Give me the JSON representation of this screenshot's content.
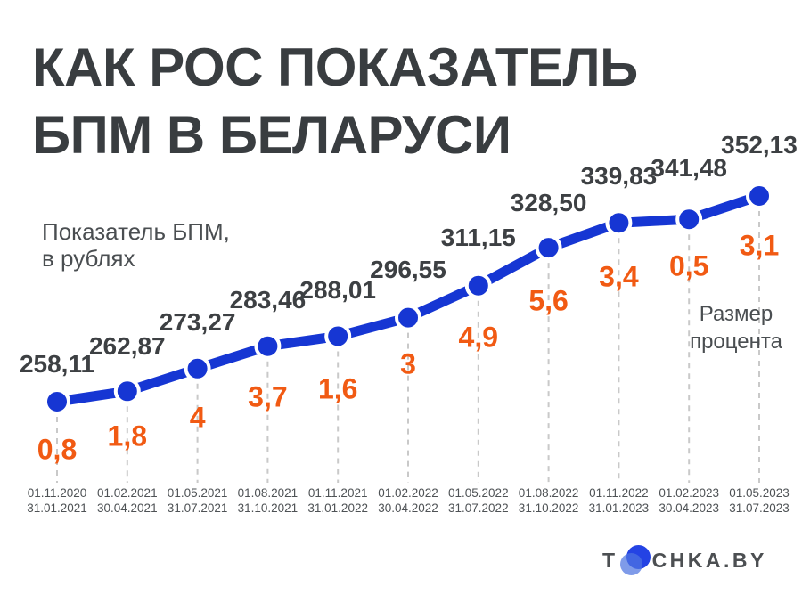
{
  "title": {
    "line1": "КАК РОС ПОКАЗАТЕЛЬ",
    "line2": "БПМ В БЕЛАРУСИ"
  },
  "subtitle": {
    "line1": "Показатель БПМ,",
    "line2": "в рублях"
  },
  "percent_caption": {
    "line1": "Размер",
    "line2": "процента"
  },
  "logo": {
    "prefix": "T",
    "suffix": "CHKA.BY"
  },
  "colors": {
    "line": "#1636d3",
    "percent": "#f15a13",
    "value_text": "#3d4043",
    "title_text": "#393d40",
    "caption_text": "#4a4e51",
    "date_text": "#4e5255",
    "dash": "#c9c9c9",
    "dot_ring": "#ffffff",
    "logo_dark_dot": "#2443e4",
    "logo_light_dot": "#4d74e0"
  },
  "chart_data": {
    "type": "line",
    "title": "КАК РОС ПОКАЗАТЕЛЬ БПМ В БЕЛАРУСИ",
    "series_label": "Показатель БПМ, в рублях",
    "secondary_label": "Размер процента",
    "values": [
      258.11,
      262.87,
      273.27,
      283.46,
      288.01,
      296.55,
      311.15,
      328.5,
      339.83,
      341.48,
      352.13
    ],
    "value_labels": [
      "258,11",
      "262,87",
      "273,27",
      "283,46",
      "288,01",
      "296,55",
      "311,15",
      "328,50",
      "339,83",
      "341,48",
      "352,13"
    ],
    "percent_values": [
      0.8,
      1.8,
      4,
      3.7,
      1.6,
      3,
      4.9,
      5.6,
      3.4,
      0.5,
      3.1
    ],
    "percent_labels": [
      "0,8",
      "1,8",
      "4",
      "3,7",
      "1,6",
      "3",
      "4,9",
      "5,6",
      "3,4",
      "0,5",
      "3,1"
    ],
    "periods": [
      {
        "start": "01.11.2020",
        "end": "31.01.2021"
      },
      {
        "start": "01.02.2021",
        "end": "30.04.2021"
      },
      {
        "start": "01.05.2021",
        "end": "31.07.2021"
      },
      {
        "start": "01.08.2021",
        "end": "31.10.2021"
      },
      {
        "start": "01.11.2021",
        "end": "31.01.2022"
      },
      {
        "start": "01.02.2022",
        "end": "30.04.2022"
      },
      {
        "start": "01.05.2022",
        "end": "31.07.2022"
      },
      {
        "start": "01.08.2022",
        "end": "31.10.2022"
      },
      {
        "start": "01.11.2022",
        "end": "31.01.2023"
      },
      {
        "start": "01.02.2023",
        "end": "30.04.2023"
      },
      {
        "start": "01.05.2023",
        "end": "31.07.2023"
      }
    ],
    "ylim": [
      258.11,
      352.13
    ],
    "grid": false,
    "legend": false
  }
}
